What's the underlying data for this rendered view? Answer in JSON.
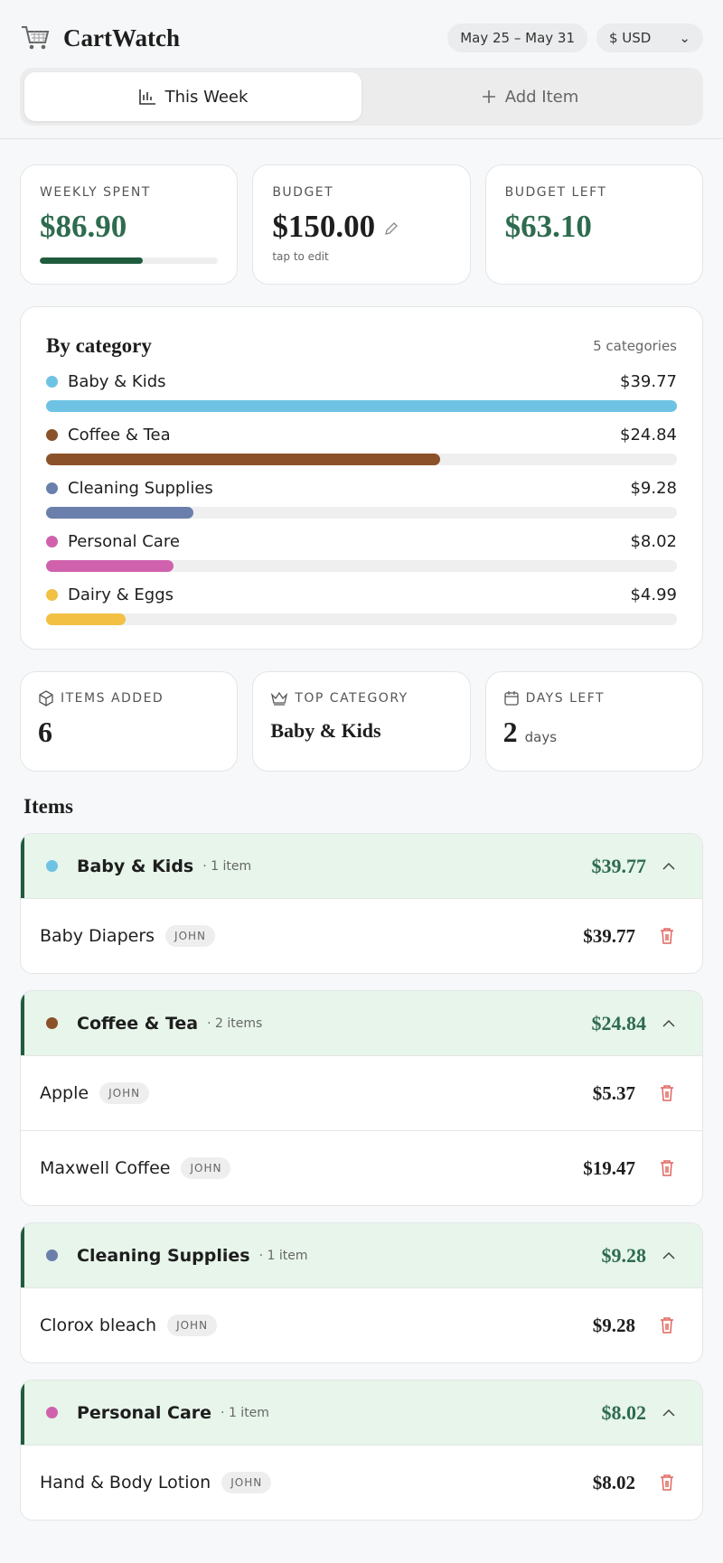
{
  "header": {
    "app_name": "CartWatch",
    "date_range": "May 25 – May 31",
    "currency": "$ USD"
  },
  "tabs": [
    "This Week",
    "Add Item"
  ],
  "summary": {
    "weekly_spent": {
      "label": "WEEKLY SPENT",
      "amount": {
        "value": 86.9,
        "text": "$86.90"
      }
    },
    "budget": {
      "label": "BUDGET",
      "amount": {
        "value": 150,
        "text": "$150.00"
      },
      "hint": "tap to edit"
    },
    "budget_left": {
      "label": "BUDGET LEFT",
      "amount": {
        "value": 63.1,
        "text": "$63.10"
      }
    }
  },
  "by_category": {
    "title": "By category",
    "count": "5 categories",
    "rows": [
      {
        "name": "Baby & Kids",
        "color": "#6ec3e4",
        "amount": {
          "value": 39.77,
          "text": "$39.77"
        }
      },
      {
        "name": "Coffee & Tea",
        "color": "#8b5128",
        "amount": {
          "value": 24.84,
          "text": "$24.84"
        }
      },
      {
        "name": "Cleaning Supplies",
        "color": "#6a7fab",
        "amount": {
          "value": 9.28,
          "text": "$9.28"
        }
      },
      {
        "name": "Personal Care",
        "color": "#d062ad",
        "amount": {
          "value": 8.02,
          "text": "$8.02"
        }
      },
      {
        "name": "Dairy & Eggs",
        "color": "#f2c144",
        "amount": {
          "value": 4.99,
          "text": "$4.99"
        }
      }
    ]
  },
  "stats": {
    "items_added": {
      "label": "ITEMS ADDED",
      "value": "6"
    },
    "top_category": {
      "label": "TOP CATEGORY",
      "value": "Baby & Kids"
    },
    "days_left": {
      "label": "DAYS LEFT",
      "value": "2",
      "unit": "days"
    }
  },
  "items": {
    "title": "Items",
    "groups": [
      {
        "name": "Baby & Kids",
        "color": "#6ec3e4",
        "count": "· 1 item",
        "total": "$39.77",
        "items": [
          {
            "name": "Baby Diapers",
            "owner": "JOHN",
            "price": "$39.77"
          }
        ]
      },
      {
        "name": "Coffee & Tea",
        "color": "#8b5128",
        "count": "· 2 items",
        "total": "$24.84",
        "items": [
          {
            "name": "Apple",
            "owner": "JOHN",
            "price": "$5.37"
          },
          {
            "name": "Maxwell Coffee",
            "owner": "JOHN",
            "price": "$19.47"
          }
        ]
      },
      {
        "name": "Cleaning Supplies",
        "color": "#6a7fab",
        "count": "· 1 item",
        "total": "$9.28",
        "items": [
          {
            "name": "Clorox bleach",
            "owner": "JOHN",
            "price": "$9.28"
          }
        ]
      },
      {
        "name": "Personal Care",
        "color": "#d062ad",
        "count": "· 1 item",
        "total": "$8.02",
        "items": [
          {
            "name": "Hand & Body Lotion",
            "owner": "JOHN",
            "price": "$8.02"
          }
        ]
      }
    ]
  }
}
